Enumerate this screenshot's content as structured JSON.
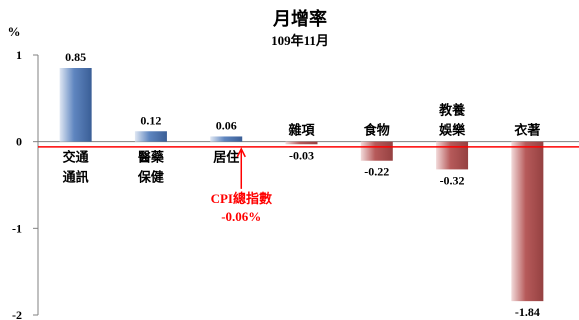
{
  "chart_data": {
    "type": "bar",
    "title": "月增率",
    "subtitle": "109年11月",
    "ylabel": "%",
    "ylim": [
      -2,
      1
    ],
    "yticks": [
      1,
      0,
      -1,
      -2
    ],
    "grid": false,
    "categories": [
      [
        "交通",
        "通訊"
      ],
      [
        "醫藥",
        "保健"
      ],
      [
        "居住"
      ],
      [
        "雜項"
      ],
      [
        "食物"
      ],
      [
        "教養",
        "娛樂"
      ],
      [
        "衣著"
      ]
    ],
    "values": [
      0.85,
      0.12,
      0.06,
      -0.03,
      -0.22,
      -0.32,
      -1.84
    ],
    "value_labels": [
      "0.85",
      "0.12",
      "0.06",
      "-0.03",
      "-0.22",
      "-0.32",
      "-1.84"
    ],
    "reference_line": {
      "value": -0.06,
      "label_lines": [
        "CPI總指數",
        "-0.06%"
      ],
      "color": "#ff0000"
    },
    "colors": {
      "positive": "#4a6ea4",
      "negative": "#a84e4e"
    }
  }
}
